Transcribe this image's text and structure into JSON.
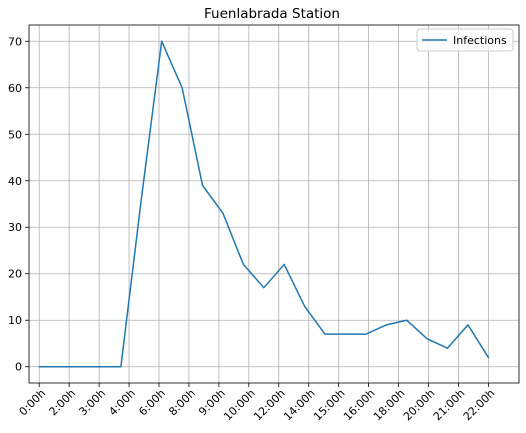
{
  "chart_data": {
    "type": "line",
    "title": "Fuenlabrada Station",
    "xlabel": "",
    "ylabel": "",
    "x_tick_labels": [
      "0:00h",
      "2:00h",
      "3:00h",
      "4:00h",
      "6:00h",
      "8:00h",
      "9:00h",
      "10:00h",
      "12:00h",
      "14:00h",
      "15:00h",
      "16:00h",
      "18:00h",
      "20:00h",
      "21:00h",
      "22:00h"
    ],
    "y_ticks": [
      0,
      10,
      20,
      30,
      40,
      50,
      60,
      70
    ],
    "ylim": [
      -3.5,
      73.5
    ],
    "xlim": [
      -0.5,
      23.5
    ],
    "grid": true,
    "legend_position": "top-right",
    "series": [
      {
        "name": "Infections",
        "color": "#1f77b4",
        "x": [
          0,
          1,
          2,
          3,
          4,
          5,
          6,
          7,
          8,
          9,
          10,
          11,
          12,
          13,
          14,
          15,
          16,
          17,
          18,
          19,
          20,
          21,
          22
        ],
        "values": [
          0,
          0,
          0,
          0,
          0,
          36,
          70,
          60,
          39,
          33,
          22,
          17,
          22,
          13,
          7,
          7,
          7,
          9,
          10,
          6,
          4,
          9,
          2
        ]
      }
    ]
  }
}
